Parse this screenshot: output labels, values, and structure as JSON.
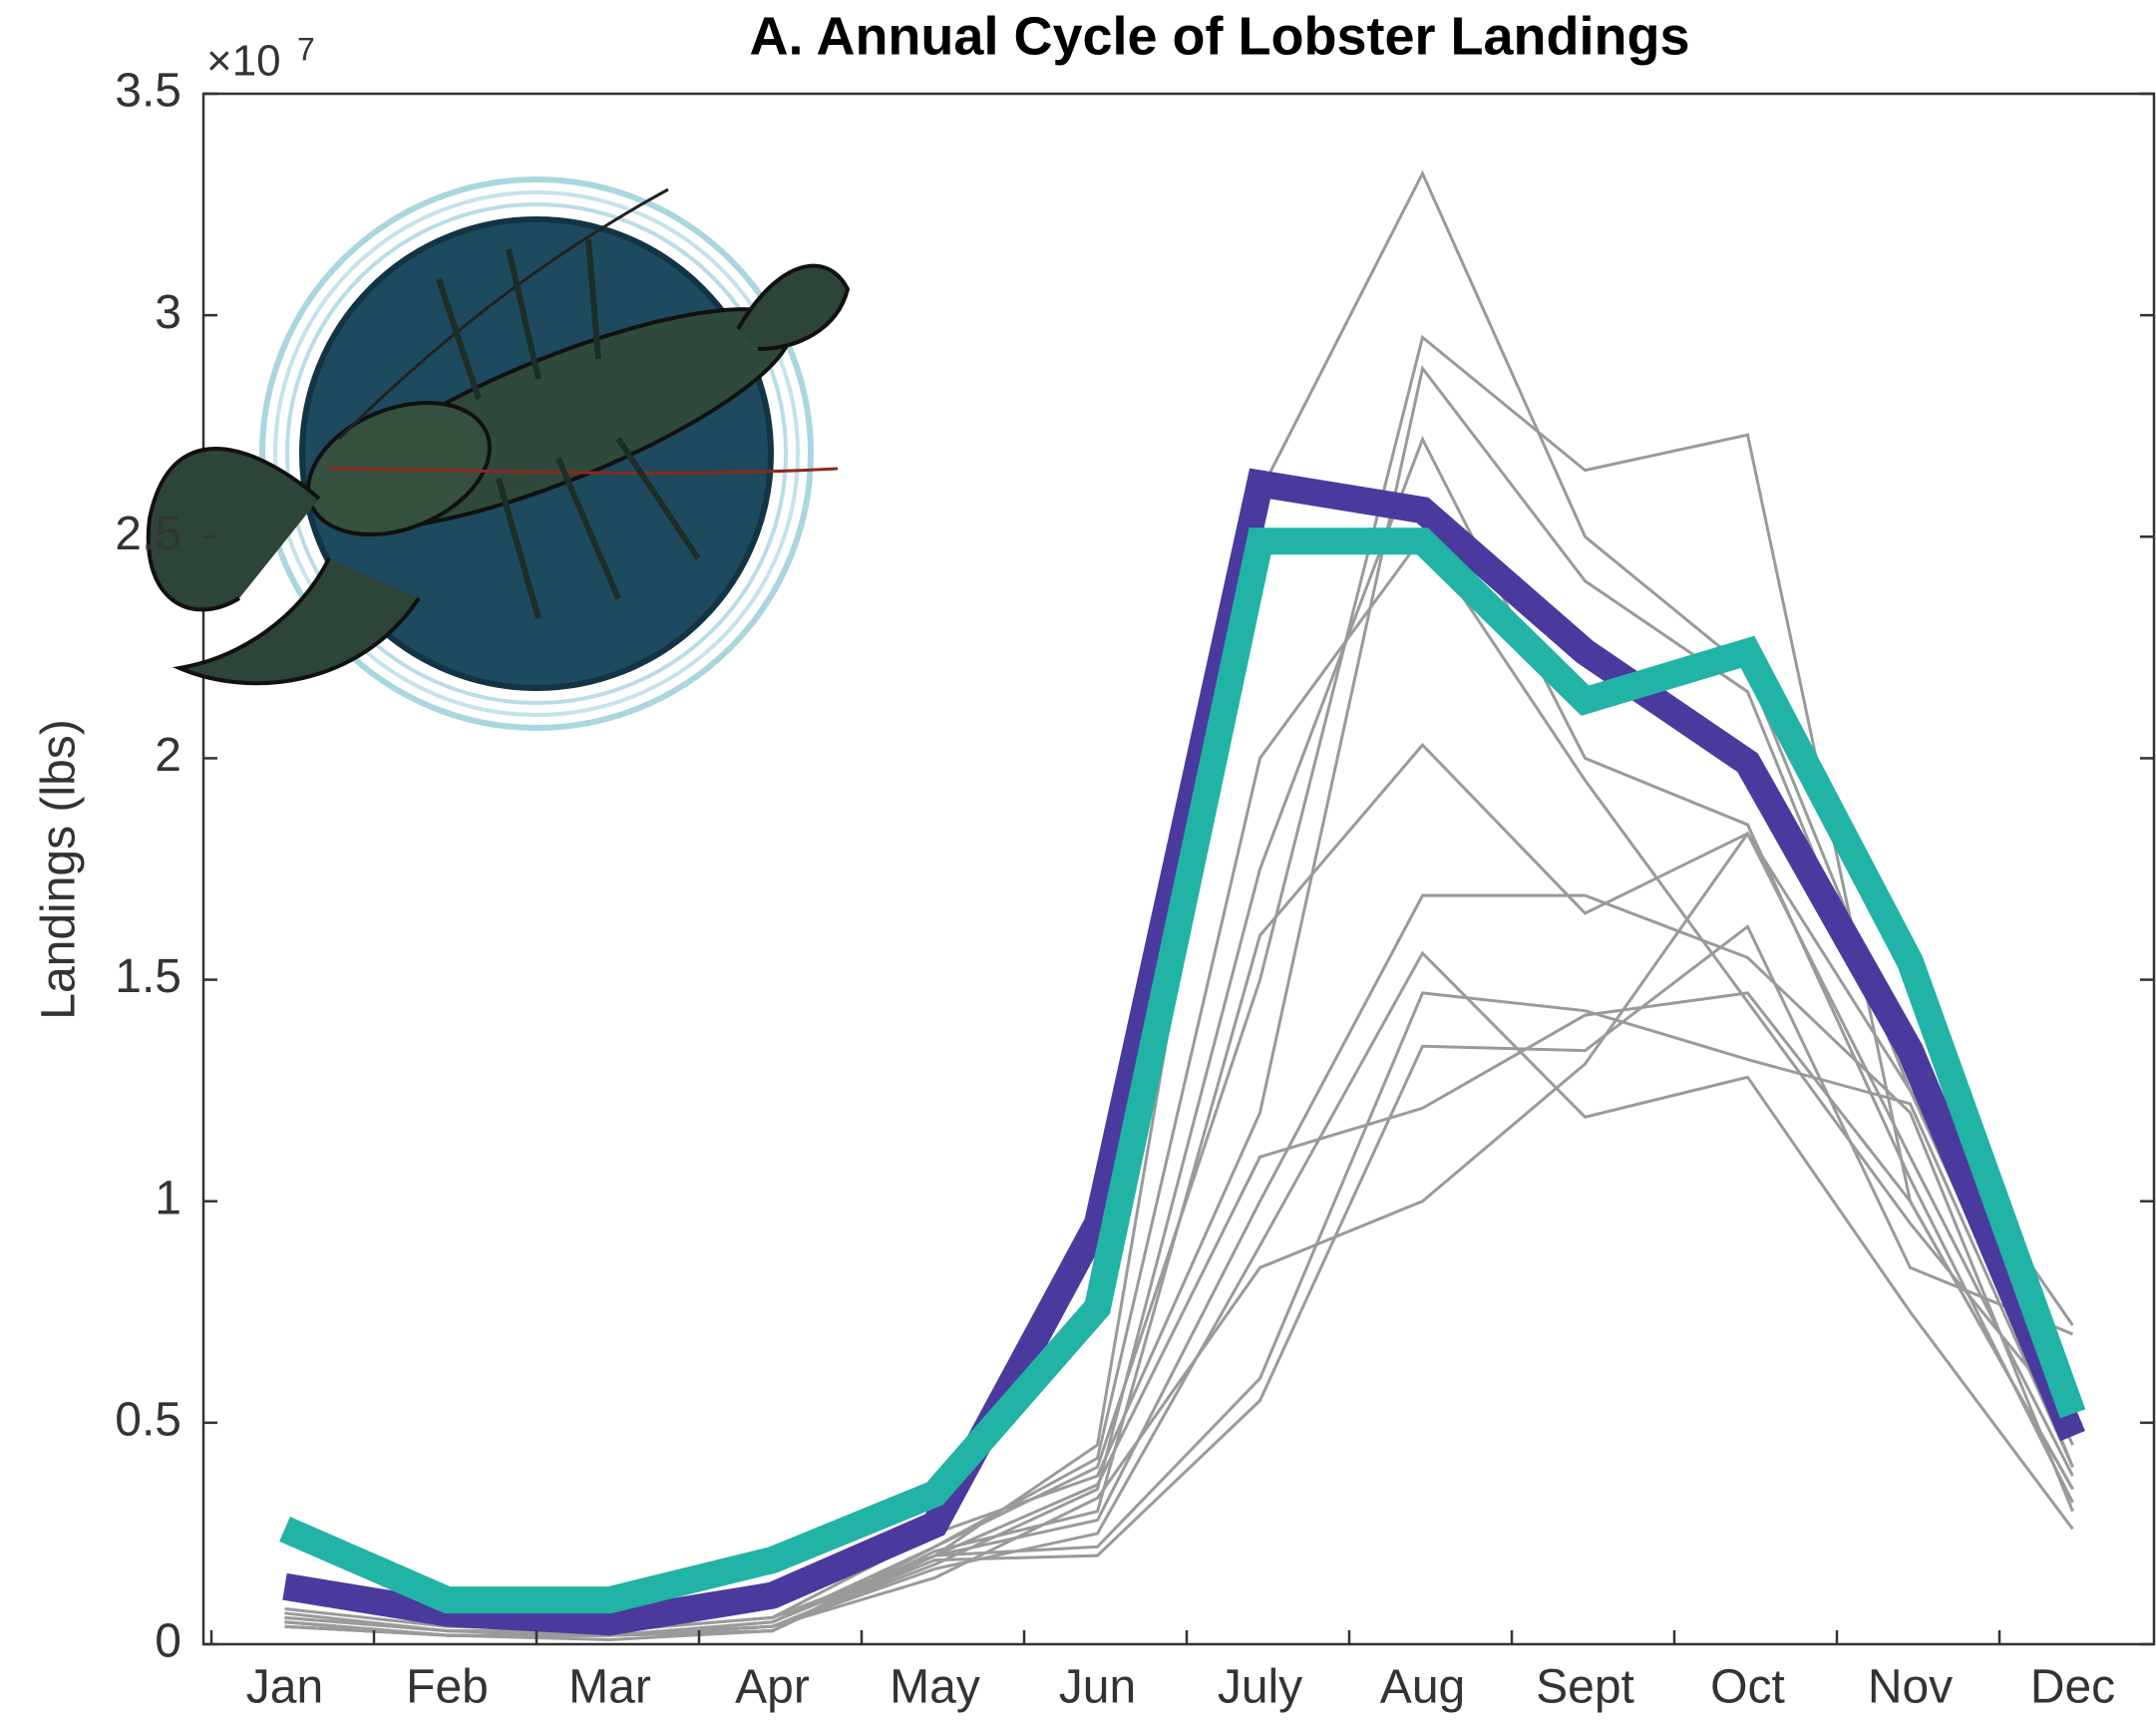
{
  "chart_data": {
    "type": "line",
    "title": "A. Annual Cycle of Lobster Landings",
    "y_label": "Landings (lbs)",
    "y_multiplier": {
      "base": "×10",
      "exponent": "7"
    },
    "categories": [
      "Jan",
      "Feb",
      "Mar",
      "Apr",
      "May",
      "Jun",
      "July",
      "Aug",
      "Sept",
      "Oct",
      "Nov",
      "Dec"
    ],
    "ylim": [
      0,
      3.5
    ],
    "yticks": [
      0,
      0.5,
      1,
      1.5,
      2,
      2.5,
      3,
      3.5
    ],
    "grid": false,
    "series": [
      {
        "color": "#9a9a9a",
        "values": [
          0.08,
          0.04,
          0.03,
          0.06,
          0.2,
          0.45,
          2.6,
          3.32,
          2.5,
          2.2,
          1.3,
          0.4
        ]
      },
      {
        "color": "#9a9a9a",
        "values": [
          0.06,
          0.03,
          0.02,
          0.05,
          0.22,
          0.4,
          1.5,
          2.95,
          2.65,
          2.73,
          1.0,
          0.35
        ]
      },
      {
        "color": "#9a9a9a",
        "values": [
          0.07,
          0.03,
          0.03,
          0.06,
          0.25,
          0.38,
          1.2,
          2.88,
          2.4,
          2.15,
          1.25,
          0.45
        ]
      },
      {
        "color": "#9a9a9a",
        "values": [
          0.05,
          0.02,
          0.02,
          0.04,
          0.18,
          0.35,
          1.75,
          2.72,
          2.0,
          1.85,
          1.05,
          0.32
        ]
      },
      {
        "color": "#9a9a9a",
        "values": [
          0.04,
          0.02,
          0.02,
          0.03,
          0.21,
          0.3,
          1.6,
          2.03,
          1.65,
          1.83,
          1.1,
          0.38
        ]
      },
      {
        "color": "#9a9a9a",
        "values": [
          0.06,
          0.03,
          0.02,
          0.05,
          0.2,
          0.28,
          1.0,
          1.69,
          1.69,
          1.55,
          1.2,
          0.3
        ]
      },
      {
        "color": "#9a9a9a",
        "values": [
          0.05,
          0.02,
          0.02,
          0.04,
          0.17,
          0.25,
          0.9,
          1.56,
          1.19,
          1.28,
          0.75,
          0.26
        ]
      },
      {
        "color": "#9a9a9a",
        "values": [
          0.04,
          0.02,
          0.02,
          0.03,
          0.2,
          0.22,
          0.6,
          1.47,
          1.43,
          1.32,
          1.22,
          0.4
        ]
      },
      {
        "color": "#9a9a9a",
        "values": [
          0.05,
          0.02,
          0.02,
          0.04,
          0.19,
          0.2,
          0.55,
          1.35,
          1.34,
          1.62,
          0.85,
          0.7
        ]
      },
      {
        "color": "#9a9a9a",
        "values": [
          0.04,
          0.02,
          0.01,
          0.03,
          0.2,
          0.36,
          1.1,
          1.21,
          1.42,
          1.47,
          1.0,
          0.35
        ]
      },
      {
        "color": "#9a9a9a",
        "values": [
          0.05,
          0.02,
          0.02,
          0.04,
          0.15,
          0.33,
          0.85,
          1.0,
          1.31,
          1.83,
          1.25,
          0.72
        ]
      },
      {
        "color": "#9a9a9a",
        "values": [
          0.05,
          0.02,
          0.02,
          0.03,
          0.22,
          0.42,
          2.0,
          2.5,
          1.95,
          1.45,
          0.95,
          0.5
        ]
      },
      {
        "color": "#4b3a9e",
        "line_width": 27,
        "values": [
          0.13,
          0.07,
          0.05,
          0.11,
          0.27,
          0.95,
          2.62,
          2.56,
          2.24,
          1.99,
          1.34,
          0.47
        ]
      },
      {
        "color": "#21b3a5",
        "line_width": 27,
        "values": [
          0.26,
          0.1,
          0.1,
          0.19,
          0.34,
          0.76,
          2.49,
          2.49,
          2.13,
          2.24,
          1.54,
          0.52
        ]
      }
    ]
  }
}
